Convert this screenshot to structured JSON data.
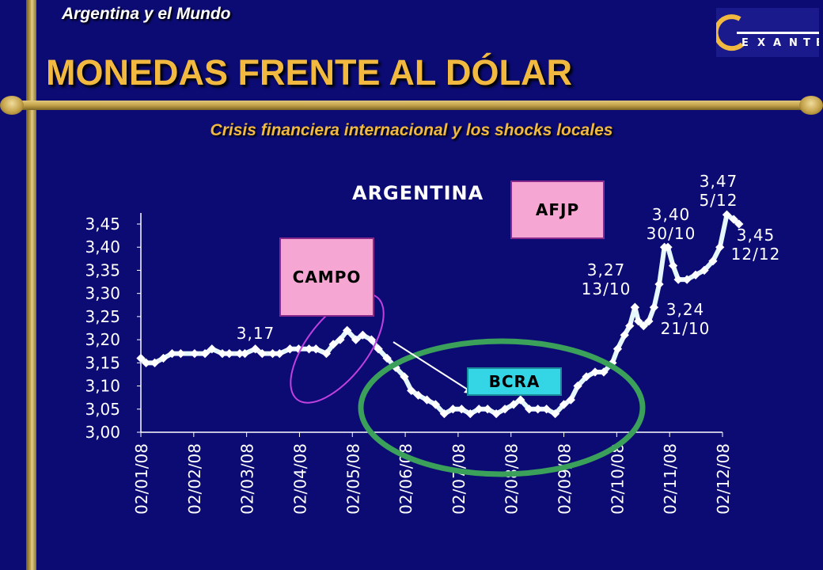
{
  "slide": {
    "header": "Argentina y el Mundo",
    "title": "MONEDAS FRENTE AL DÓLAR",
    "subtitle": "Crisis financiera internacional y los shocks locales",
    "logo_text": "EXANTE",
    "colors": {
      "background": "#0b0b73",
      "title": "#f2b940",
      "series": "#e6f7fb",
      "circle": "#3aa05a",
      "ellipse": "#c040e0"
    }
  },
  "chart_data": {
    "type": "line",
    "title": "ARGENTINA",
    "xlabel": "",
    "ylabel": "",
    "ylim": [
      3.0,
      3.45
    ],
    "y_ticks": [
      "3,00",
      "3,05",
      "3,10",
      "3,15",
      "3,20",
      "3,25",
      "3,30",
      "3,35",
      "3,40",
      "3,45"
    ],
    "x_ticks": [
      "02/01/08",
      "02/02/08",
      "02/03/08",
      "02/04/08",
      "02/05/08",
      "02/06/08",
      "02/07/08",
      "02/08/08",
      "02/09/08",
      "02/10/08",
      "02/11/08",
      "02/12/08"
    ],
    "grid": false,
    "legend": "none",
    "series": [
      {
        "x": [
          "02/01/08",
          "05/01/08",
          "10/01/08",
          "15/01/08",
          "20/01/08",
          "25/01/08",
          "02/02/08",
          "08/02/08",
          "12/02/08",
          "18/02/08",
          "22/02/08",
          "28/02/08",
          "02/03/08",
          "08/03/08",
          "12/03/08",
          "18/03/08",
          "22/03/08",
          "28/03/08",
          "02/04/08",
          "08/04/08",
          "12/04/08",
          "18/04/08",
          "22/04/08",
          "26/04/08",
          "30/04/08",
          "05/05/08",
          "09/05/08",
          "14/05/08",
          "18/05/08",
          "23/05/08",
          "28/05/08",
          "02/06/08",
          "06/06/08",
          "10/06/08",
          "15/06/08",
          "20/06/08",
          "25/06/08",
          "30/06/08",
          "05/07/08",
          "10/07/08",
          "15/07/08",
          "20/07/08",
          "25/07/08",
          "30/07/08",
          "04/08/08",
          "08/08/08",
          "13/08/08",
          "18/08/08",
          "23/08/08",
          "28/08/08",
          "02/09/08",
          "06/09/08",
          "10/09/08",
          "15/09/08",
          "20/09/08",
          "25/09/08",
          "30/09/08",
          "03/10/08",
          "07/10/08",
          "10/10/08",
          "13/10/08",
          "15/10/08",
          "18/10/08",
          "21/10/08",
          "24/10/08",
          "27/10/08",
          "30/10/08",
          "01/11/08",
          "04/11/08",
          "07/11/08",
          "12/11/08",
          "17/11/08",
          "22/11/08",
          "27/11/08",
          "01/12/08",
          "05/12/08",
          "09/12/08",
          "12/12/08"
        ],
        "y": [
          3.16,
          3.15,
          3.15,
          3.16,
          3.17,
          3.17,
          3.17,
          3.17,
          3.18,
          3.17,
          3.17,
          3.17,
          3.17,
          3.18,
          3.17,
          3.17,
          3.17,
          3.18,
          3.18,
          3.18,
          3.18,
          3.17,
          3.19,
          3.2,
          3.22,
          3.2,
          3.21,
          3.2,
          3.18,
          3.16,
          3.14,
          3.12,
          3.09,
          3.08,
          3.07,
          3.06,
          3.04,
          3.05,
          3.05,
          3.04,
          3.05,
          3.05,
          3.04,
          3.05,
          3.06,
          3.07,
          3.05,
          3.05,
          3.05,
          3.04,
          3.06,
          3.07,
          3.1,
          3.12,
          3.13,
          3.13,
          3.15,
          3.18,
          3.21,
          3.23,
          3.27,
          3.24,
          3.23,
          3.24,
          3.27,
          3.32,
          3.4,
          3.4,
          3.36,
          3.33,
          3.33,
          3.34,
          3.35,
          3.37,
          3.4,
          3.47,
          3.46,
          3.45
        ]
      }
    ],
    "annotations": [
      {
        "line1": "3,17",
        "line2": ""
      },
      {
        "line1": "3,27",
        "line2": "13/10"
      },
      {
        "line1": "3,24",
        "line2": "21/10"
      },
      {
        "line1": "3,40",
        "line2": "30/10"
      },
      {
        "line1": "3,47",
        "line2": "5/12"
      },
      {
        "line1": "3,45",
        "line2": "12/12"
      }
    ],
    "callouts": {
      "campo": "CAMPO",
      "afjp": "AFJP",
      "bcra": "BCRA"
    }
  }
}
